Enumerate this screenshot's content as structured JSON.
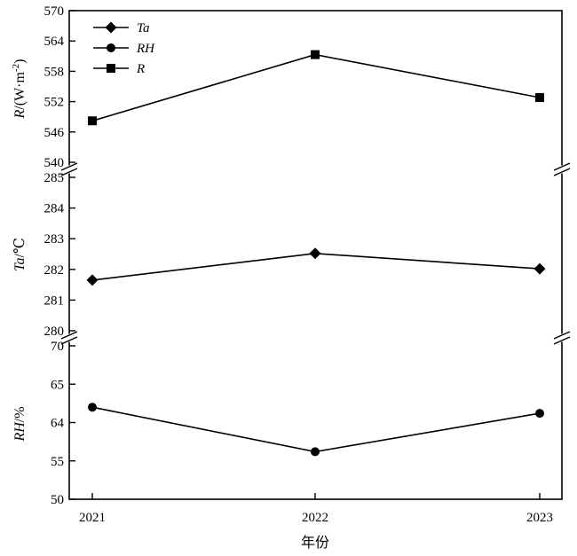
{
  "chart_data": {
    "type": "line",
    "categories": [
      "2021",
      "2022",
      "2023"
    ],
    "xlabel": "年份",
    "panels": [
      {
        "id": "R",
        "ylabel_var": "R",
        "ylabel_unit": "/(W·m",
        "ylabel_sup": "-2",
        "ylabel_close": ")",
        "ylim": [
          540,
          570
        ],
        "ticks": [
          "540",
          "546",
          "552",
          "558",
          "564",
          "570"
        ],
        "series": [
          {
            "name": "R",
            "marker": "square",
            "values": [
              548.2,
              561.3,
              552.8
            ]
          }
        ]
      },
      {
        "id": "Ta",
        "ylabel_var": "Ta",
        "ylabel_unit": "/℃",
        "ylim": [
          280,
          285
        ],
        "ticks": [
          "280",
          "281",
          "282",
          "283",
          "284",
          "285"
        ],
        "series": [
          {
            "name": "Ta",
            "marker": "diamond",
            "values": [
              281.65,
              282.52,
              282.02
            ]
          }
        ]
      },
      {
        "id": "RH",
        "ylabel_var": "RH",
        "ylabel_unit": "/%",
        "ylim": [
          0,
          5
        ],
        "ticks": [
          "50",
          "55",
          "64",
          "65",
          "70"
        ],
        "series": [
          {
            "name": "RH",
            "marker": "circle",
            "values": [
              3.0,
              1.55,
              2.8
            ]
          }
        ]
      }
    ],
    "legend": {
      "position": "top-left",
      "entries": [
        {
          "name": "Ta",
          "marker": "diamond"
        },
        {
          "name": "RH",
          "marker": "circle"
        },
        {
          "name": "R",
          "marker": "square"
        }
      ]
    },
    "grid": false,
    "axis_breaks": true
  }
}
